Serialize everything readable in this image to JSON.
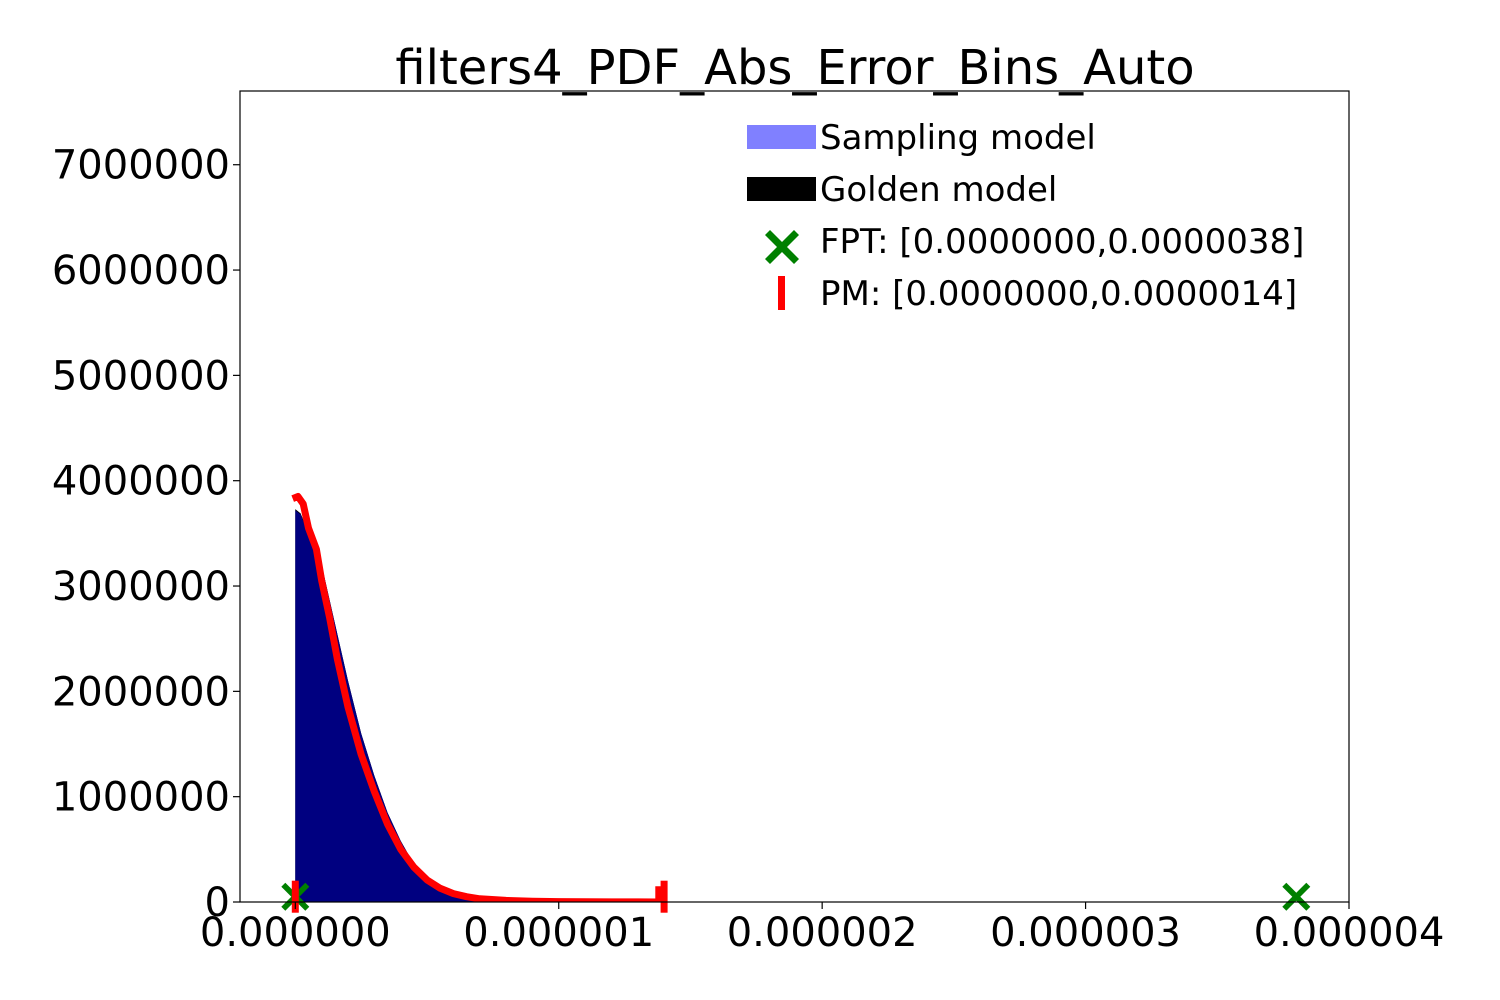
{
  "chart_data": {
    "type": "area",
    "title": "filters4_PDF_Abs_Error_Bins_Auto",
    "xlabel": "",
    "ylabel": "",
    "xlim": [
      -2.1e-07,
      4e-06
    ],
    "ylim": [
      0,
      7700000
    ],
    "x_ticks": [
      0.0,
      1e-06,
      2e-06,
      3e-06,
      4e-06
    ],
    "x_tick_labels": [
      "0.000000",
      "0.000001",
      "0.000002",
      "0.000003",
      "0.000004"
    ],
    "y_ticks": [
      0,
      1000000,
      2000000,
      3000000,
      4000000,
      5000000,
      6000000,
      7000000
    ],
    "y_tick_labels": [
      "0",
      "1000000",
      "2000000",
      "3000000",
      "4000000",
      "5000000",
      "6000000",
      "7000000"
    ],
    "grid": false,
    "legend_position": "top-right",
    "series": [
      {
        "name": "Sampling model",
        "kind": "histogram",
        "color": "#8080ff",
        "x": [
          0.0,
          2e-08,
          5e-08,
          1e-07,
          1.5e-07,
          2e-07,
          2.5e-07,
          3e-07,
          3.5e-07,
          4e-07,
          4.5e-07,
          5e-07,
          5.5e-07,
          6e-07,
          6.5e-07,
          7e-07,
          8e-07,
          9e-07,
          1e-06,
          1.1e-06,
          1.2e-06,
          1.3e-06,
          1.4e-06
        ],
        "y": [
          3720000,
          3680000,
          3500000,
          3200000,
          2650000,
          2100000,
          1600000,
          1200000,
          850000,
          580000,
          360000,
          220000,
          120000,
          70000,
          40000,
          22000,
          10000,
          5000,
          2500,
          1200,
          600,
          300,
          150
        ]
      },
      {
        "name": "Golden model",
        "kind": "histogram",
        "color": "#000000",
        "x": [
          0.0,
          2e-08,
          5e-08,
          1e-07,
          1.5e-07,
          2e-07,
          2.5e-07,
          3e-07,
          3.5e-07,
          4e-07,
          4.5e-07,
          5e-07,
          5.5e-07,
          6e-07,
          6.5e-07,
          7e-07,
          8e-07,
          9e-07,
          1e-06,
          1.1e-06,
          1.2e-06,
          1.3e-06,
          1.4e-06
        ],
        "y": [
          3730000,
          3690000,
          3510000,
          3200000,
          2650000,
          2100000,
          1600000,
          1200000,
          850000,
          580000,
          360000,
          220000,
          120000,
          70000,
          40000,
          22000,
          10000,
          5000,
          2500,
          1200,
          600,
          300,
          150
        ]
      },
      {
        "name": "PM",
        "kind": "line",
        "color": "#ff0000",
        "x": [
          -1e-08,
          1e-08,
          3e-08,
          5e-08,
          8e-08,
          1e-07,
          1.3e-07,
          1.6e-07,
          2e-07,
          2.5e-07,
          3e-07,
          3.5e-07,
          4e-07,
          4.5e-07,
          5e-07,
          5.5e-07,
          6e-07,
          6.5e-07,
          7e-07,
          8e-07,
          9e-07,
          1e-06,
          1.1e-06,
          1.2e-06,
          1.3e-06,
          1.38e-06,
          1.38e-06
        ],
        "y": [
          3830000,
          3850000,
          3780000,
          3550000,
          3350000,
          3050000,
          2700000,
          2300000,
          1850000,
          1400000,
          1050000,
          740000,
          500000,
          330000,
          210000,
          130000,
          80000,
          50000,
          30000,
          15000,
          8000,
          4000,
          2000,
          1000,
          500,
          0,
          150000
        ]
      }
    ],
    "markers": [
      {
        "name": "FPT",
        "shape": "X",
        "color": "#008000",
        "x": [
          0.0,
          3.8e-06
        ],
        "y": [
          50000,
          50000
        ]
      },
      {
        "name": "PM",
        "shape": "|",
        "color": "#ff0000",
        "x": [
          0.0,
          1.4e-06
        ],
        "y": [
          50000,
          50000
        ]
      }
    ],
    "legend": [
      {
        "label": "Sampling model",
        "symbol": "patch",
        "color": "#8080ff"
      },
      {
        "label": "Golden model",
        "symbol": "patch",
        "color": "#000000"
      },
      {
        "label": "FPT: [0.0000000,0.0000038]",
        "symbol": "X",
        "color": "#008000"
      },
      {
        "label": "PM: [0.0000000,0.0000014]",
        "symbol": "|",
        "color": "#ff0000"
      }
    ],
    "overlap_color": "#000080"
  }
}
